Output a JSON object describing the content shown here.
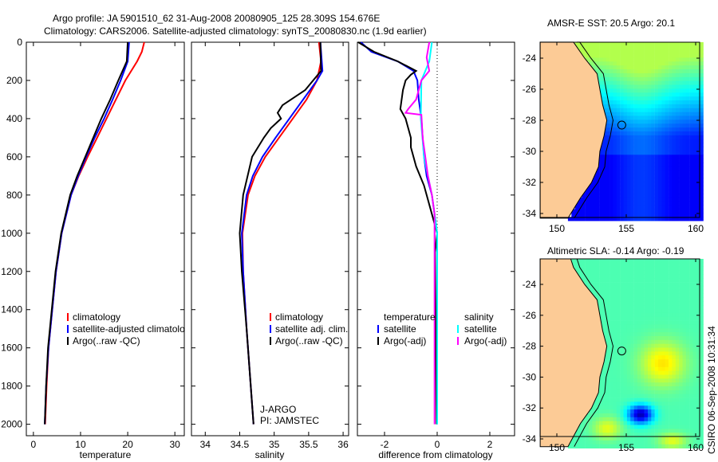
{
  "title_line1": "Argo profile: JA 5901510_62 31-Aug-2008 20080905_125 28.309S 154.676E",
  "title_line2": "Climatology: CARS2006. Satellite-adjusted climatology: synTS_20080830.nc (1.9d earlier)",
  "footer_stamp": "CSIRO 06-Sep-2008 10:31:34",
  "pi_label1": "J-ARGO",
  "pi_label2": "PI: JAMSTEC",
  "colors": {
    "climatology": "#ff0000",
    "satellite": "#0000ff",
    "argo": "#000000",
    "sal_satellite": "#00ffff",
    "sal_argo": "#ff00ff"
  },
  "chart_data": [
    {
      "type": "line",
      "xlabel": "temperature",
      "ylabel": "",
      "xlim": [
        -1.5,
        32
      ],
      "ylim": [
        2060,
        0
      ],
      "xticks": [
        "0",
        "10",
        "20",
        "30"
      ],
      "xtick_values": [
        0,
        10,
        20,
        30
      ],
      "yticks": [
        "0",
        "200",
        "400",
        "600",
        "800",
        "1000",
        "1200",
        "1400",
        "1600",
        "1800",
        "2000"
      ],
      "ytick_values": [
        0,
        200,
        400,
        600,
        800,
        1000,
        1200,
        1400,
        1600,
        1800,
        2000
      ],
      "legend": [
        "climatology",
        "satellite-adjusted climatology",
        "Argo(..raw -QC)"
      ],
      "series": [
        {
          "name": "climatology",
          "color": "#ff0000",
          "depth": [
            0,
            50,
            100,
            200,
            300,
            400,
            500,
            600,
            700,
            800,
            1000,
            1200,
            1400,
            1600,
            1800,
            2000
          ],
          "values": [
            23.5,
            23,
            22,
            19.5,
            17.5,
            15.5,
            13.5,
            11.5,
            9.6,
            8,
            6,
            4.8,
            4,
            3.2,
            2.8,
            2.5
          ]
        },
        {
          "name": "satellite-adjusted climatology",
          "color": "#0000ff",
          "depth": [
            0,
            100,
            200,
            300,
            400,
            500,
            600,
            700,
            800,
            1000,
            1200,
            1400,
            1600,
            1800,
            2000
          ],
          "values": [
            20.3,
            20,
            18.5,
            16.8,
            15,
            13,
            11.2,
            9.5,
            8,
            6,
            4.8,
            4,
            3.2,
            2.7,
            2.4
          ]
        },
        {
          "name": "Argo(..raw -QC)",
          "color": "#000000",
          "depth": [
            0,
            100,
            200,
            300,
            400,
            500,
            600,
            700,
            800,
            1000,
            1200,
            1400,
            1600,
            1800,
            2000
          ],
          "values": [
            20,
            19.8,
            18,
            16.3,
            14.4,
            12.7,
            11,
            9.3,
            7.8,
            5.9,
            4.7,
            3.9,
            3.1,
            2.7,
            2.4
          ]
        }
      ]
    },
    {
      "type": "line",
      "xlabel": "salinity",
      "xlim": [
        33.8,
        36.08
      ],
      "ylim": [
        2060,
        0
      ],
      "xticks": [
        "34",
        "34.5",
        "35",
        "35.5",
        "36"
      ],
      "xtick_values": [
        34,
        34.5,
        35,
        35.5,
        36
      ],
      "legend": [
        "climatology",
        "satellite adj. clim.",
        "Argo(..raw -QC)"
      ],
      "series": [
        {
          "name": "climatology",
          "color": "#ff0000",
          "depth": [
            0,
            100,
            200,
            300,
            400,
            500,
            600,
            700,
            800,
            1000,
            1200,
            1500,
            2000
          ],
          "values": [
            35.65,
            35.68,
            35.62,
            35.47,
            35.27,
            35.07,
            34.87,
            34.72,
            34.62,
            34.54,
            34.55,
            34.6,
            34.7
          ]
        },
        {
          "name": "satellite adj. clim.",
          "color": "#0000ff",
          "depth": [
            0,
            150,
            200,
            300,
            400,
            500,
            600,
            700,
            800,
            1000,
            1200,
            1500,
            2000
          ],
          "values": [
            35.67,
            35.7,
            35.62,
            35.42,
            35.22,
            35.02,
            34.83,
            34.69,
            34.6,
            34.53,
            34.55,
            34.6,
            34.7
          ]
        },
        {
          "name": "Argo(..raw -QC)",
          "color": "#000000",
          "depth": [
            0,
            150,
            250,
            330,
            370,
            400,
            450,
            500,
            600,
            800,
            1000,
            1200,
            1500,
            2000
          ],
          "values": [
            35.67,
            35.68,
            35.45,
            35.12,
            35.05,
            35.1,
            34.95,
            34.85,
            34.68,
            34.55,
            34.5,
            34.53,
            34.6,
            34.7
          ]
        }
      ]
    },
    {
      "type": "line",
      "xlabel": "difference from climatology",
      "xlim": [
        -3.03,
        2.94
      ],
      "ylim": [
        2060,
        0
      ],
      "xticks": [
        "-2",
        "0",
        "2"
      ],
      "xtick_values": [
        -2,
        0,
        2
      ],
      "legend_headers": [
        "temperature",
        "salinity"
      ],
      "legend": [
        "satellite",
        "Argo(-adj)",
        "satellite",
        "Argo(-adj)"
      ],
      "series": [
        {
          "name": "temperature satellite",
          "color": "#0000ff",
          "depth": [
            0,
            50,
            100,
            150,
            200,
            300,
            400,
            500,
            600,
            700,
            800,
            900,
            1000,
            2000
          ],
          "values": [
            -2.9,
            -2.5,
            -1.5,
            -0.9,
            -0.75,
            -0.7,
            -0.6,
            -0.55,
            -0.5,
            -0.4,
            -0.2,
            -0.1,
            0,
            0
          ]
        },
        {
          "name": "temperature Argo(-adj)",
          "color": "#000000",
          "depth": [
            0,
            50,
            100,
            150,
            170,
            200,
            250,
            350,
            400,
            500,
            550,
            650,
            750,
            850,
            950,
            1000,
            1100,
            2000
          ],
          "values": [
            -3,
            -2.4,
            -1.5,
            -0.8,
            -1.0,
            -1.2,
            -1.3,
            -1.4,
            -1.2,
            -1.0,
            -1.0,
            -0.8,
            -0.5,
            -0.3,
            -0.1,
            0,
            -0.08,
            -0.02
          ]
        },
        {
          "name": "salinity satellite",
          "color": "#00ffff",
          "depth": [
            0,
            100,
            200,
            400,
            600,
            800,
            1000,
            2000
          ],
          "values": [
            -0.2,
            -0.3,
            -0.6,
            -0.62,
            -0.5,
            -0.2,
            0,
            0
          ]
        },
        {
          "name": "salinity Argo(-adj)",
          "color": "#ff00ff",
          "depth": [
            0,
            80,
            150,
            200,
            300,
            350,
            370,
            380,
            500,
            600,
            700,
            800,
            900,
            1000,
            2000
          ],
          "values": [
            -0.3,
            -0.4,
            -0.3,
            -0.6,
            -0.8,
            -1.1,
            -1.2,
            -0.6,
            -0.55,
            -0.45,
            -0.35,
            -0.2,
            -0.1,
            -0.1,
            -0.1
          ]
        }
      ]
    },
    {
      "type": "heatmap",
      "title": "AMSR-E SST: 20.5 Argo: 20.1",
      "xticks": [
        "150",
        "155",
        "160"
      ],
      "xtick_values": [
        150,
        155,
        160
      ],
      "yticks": [
        "-24",
        "-26",
        "-28",
        "-30",
        "-32",
        "-34"
      ],
      "ytick_values": [
        -24,
        -26,
        -28,
        -30,
        -32,
        -34
      ],
      "float_position": {
        "lon": 154.676,
        "lat": -28.309
      }
    },
    {
      "type": "heatmap",
      "title": "Altimetric SLA: -0.14 Argo: -0.19",
      "xticks": [
        "150",
        "155",
        "160"
      ],
      "xtick_values": [
        150,
        155,
        160
      ],
      "yticks": [
        "-24",
        "-26",
        "-28",
        "-30",
        "-32",
        "-34"
      ],
      "ytick_values": [
        -24,
        -26,
        -28,
        -30,
        -32,
        -34
      ],
      "float_position": {
        "lon": 154.676,
        "lat": -28.309
      }
    }
  ]
}
